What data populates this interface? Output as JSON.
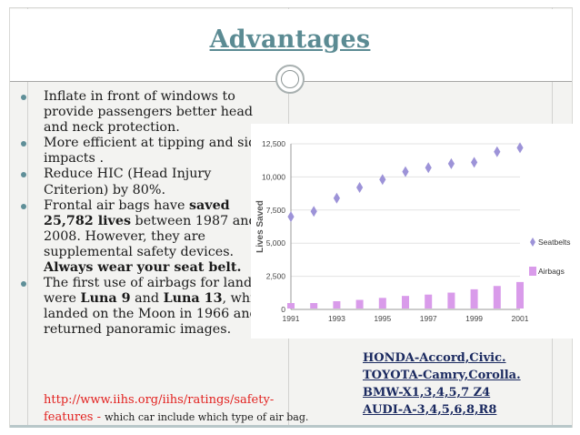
{
  "slide": {
    "title": "Advantages",
    "accent_color": "#5b8b93",
    "bullets": [
      {
        "parts": [
          {
            "text": "Inflate in front of windows to provide passengers better head and neck protection.",
            "bold": false
          }
        ]
      },
      {
        "parts": [
          {
            "text": "More efficient at tipping and side impacts .",
            "bold": false
          }
        ]
      },
      {
        "parts": [
          {
            "text": "Reduce HIC (Head Injury Criterion) by 80%.",
            "bold": false
          }
        ]
      },
      {
        "parts": [
          {
            "text": "Frontal air bags have ",
            "bold": false
          },
          {
            "text": "saved 25,782 lives",
            "bold": true
          },
          {
            "text": " between 1987 and 2008. However, they are supplemental safety devices. ",
            "bold": false
          },
          {
            "text": "Always wear your seat belt.",
            "bold": true
          }
        ]
      },
      {
        "parts": [
          {
            "text": "The first use of airbags for landing were ",
            "bold": false
          },
          {
            "text": "Luna 9",
            "bold": true
          },
          {
            "text": " and ",
            "bold": false
          },
          {
            "text": "Luna 13",
            "bold": true
          },
          {
            "text": ", which landed on the Moon in 1966 and returned panoramic images.",
            "bold": false
          }
        ]
      }
    ],
    "link": {
      "url_text": "http://www.iihs.org/iihs/ratings/safety-features",
      "separator": " - ",
      "note": "which car include which type of  air bag."
    },
    "cars": [
      "HONDA-Accord,Civic.",
      "TOYOTA-Camry,Corolla.",
      "BMW-X1,3,4,5,7 Z4",
      "AUDI-A-3,4,5,6,8,R8"
    ]
  },
  "chart_data": {
    "type": "scatter",
    "ylabel": "Lives Saved",
    "ylim": [
      0,
      12500
    ],
    "yticks": [
      "0",
      "2,500",
      "5,000",
      "7,500",
      "10,000",
      "12,500"
    ],
    "ytick_values": [
      0,
      2500,
      5000,
      7500,
      10000,
      12500
    ],
    "xticks": [
      "1991",
      "1993",
      "1995",
      "1997",
      "1999",
      "2001"
    ],
    "xtick_values": [
      1991,
      1993,
      1995,
      1997,
      1999,
      2001
    ],
    "xlim": [
      1991,
      2001
    ],
    "grid": "horizontal",
    "legend": "right",
    "series": [
      {
        "name": "Seatbelts",
        "marker": "diamond",
        "color": "#9d93d8",
        "x": [
          1991,
          1992,
          1993,
          1994,
          1995,
          1996,
          1997,
          1998,
          1999,
          2000,
          2001
        ],
        "values": [
          7000,
          7400,
          8400,
          9200,
          9800,
          10400,
          10700,
          11000,
          11100,
          11900,
          12200
        ]
      },
      {
        "name": "Airbags",
        "marker": "square",
        "color": "#d99bea",
        "x": [
          1991,
          1992,
          1993,
          1994,
          1995,
          1996,
          1997,
          1998,
          1999,
          2000,
          2001
        ],
        "values": [
          300,
          400,
          550,
          650,
          800,
          950,
          1050,
          1200,
          1450,
          1700,
          2000
        ]
      }
    ]
  }
}
